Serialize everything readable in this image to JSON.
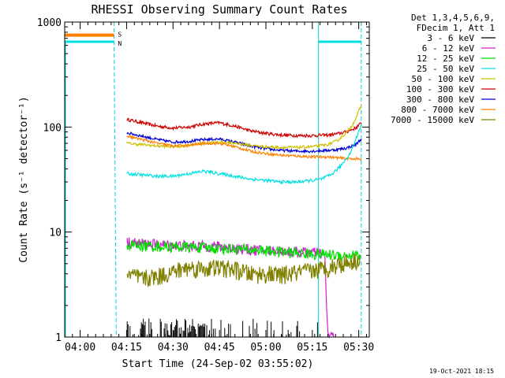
{
  "chart_data": {
    "type": "line",
    "title": "RHESSI Observing Summary Count Rates",
    "xlabel": "Start Time (24-Sep-02 03:55:02)",
    "ylabel": "Count Rate (s⁻¹ detector⁻¹)",
    "x_unit": "minutes after 03:55:02 (start)",
    "xlim": [
      0,
      98.4
    ],
    "ylim": [
      1,
      1000
    ],
    "y_scale": "log",
    "x_ticks": [
      {
        "label": "04:00",
        "minute": 5
      },
      {
        "label": "04:15",
        "minute": 20
      },
      {
        "label": "04:30",
        "minute": 35
      },
      {
        "label": "04:45",
        "minute": 50
      },
      {
        "label": "05:00",
        "minute": 65
      },
      {
        "label": "05:15",
        "minute": 80
      },
      {
        "label": "05:30",
        "minute": 95
      }
    ],
    "y_ticks": [
      {
        "label": "1",
        "value": 1
      },
      {
        "label": "10",
        "value": 10
      },
      {
        "label": "100",
        "value": 100
      },
      {
        "label": "1000",
        "value": 1000
      }
    ],
    "legend": {
      "position": "right",
      "header": [
        "Det 1,3,4,5,6,9,",
        "FDecim 1, Att 1"
      ],
      "entries": [
        {
          "label": "3 - 6 keV",
          "color": "#000000"
        },
        {
          "label": "6 - 12 keV",
          "color": "#d020d0"
        },
        {
          "label": "12 - 25 keV",
          "color": "#00e000"
        },
        {
          "label": "25 - 50 keV",
          "color": "#00e0e0"
        },
        {
          "label": "50 - 100 keV",
          "color": "#d0c000"
        },
        {
          "label": "100 - 300 keV",
          "color": "#d00000"
        },
        {
          "label": "300 - 800 keV",
          "color": "#0000d0"
        },
        {
          "label": "800 - 7000 keV",
          "color": "#ff8000"
        },
        {
          "label": "7000 - 15000 keV",
          "color": "#808000"
        }
      ]
    },
    "markers": {
      "night_start": 15.9,
      "night_end": 95.8,
      "saa_line": 82,
      "saa_segment_left": [
        0,
        15.9
      ],
      "saa_segment_right": [
        82,
        95.8
      ],
      "orange_segment_value": 750,
      "cyan_segment_value": 650,
      "label_s": "S",
      "label_n": "N"
    },
    "series": [
      {
        "name": "100 - 300 keV",
        "color": "#d00000",
        "noise": 0.035,
        "x": [
          20.2,
          25,
          30,
          35,
          40,
          45,
          50,
          55,
          60,
          65,
          70,
          75,
          80,
          85,
          88,
          91,
          94,
          96
        ],
        "y": [
          118,
          110,
          102,
          98,
          100,
          107,
          110,
          102,
          92,
          87,
          84,
          83,
          83,
          84,
          86,
          90,
          98,
          110
        ]
      },
      {
        "name": "300 - 800 keV",
        "color": "#0000d0",
        "noise": 0.03,
        "x": [
          20.2,
          25,
          30,
          35,
          40,
          45,
          50,
          55,
          60,
          65,
          70,
          75,
          80,
          85,
          88,
          91,
          94,
          96
        ],
        "y": [
          88,
          82,
          76,
          72,
          73,
          76,
          77,
          72,
          66,
          62,
          60,
          59,
          59,
          60,
          61,
          63,
          68,
          78
        ]
      },
      {
        "name": "50 - 100 keV",
        "color": "#d0c000",
        "noise": 0.03,
        "x": [
          20.2,
          25,
          30,
          35,
          40,
          45,
          50,
          55,
          60,
          65,
          70,
          75,
          80,
          85,
          88,
          91,
          93,
          94.5,
          96
        ],
        "y": [
          70,
          68,
          66,
          65,
          67,
          70,
          72,
          70,
          67,
          65,
          64,
          64,
          65,
          68,
          74,
          88,
          105,
          130,
          165
        ]
      },
      {
        "name": "800 - 7000 keV",
        "color": "#ff8000",
        "noise": 0.03,
        "x": [
          20.2,
          25,
          30,
          35,
          40,
          45,
          50,
          55,
          60,
          65,
          70,
          75,
          80,
          85,
          88,
          91,
          94,
          96
        ],
        "y": [
          82,
          76,
          70,
          66,
          67,
          70,
          70,
          65,
          59,
          56,
          54,
          53,
          52,
          52,
          51,
          50,
          50,
          49
        ]
      },
      {
        "name": "25 - 50 keV",
        "color": "#00e0e0",
        "noise": 0.035,
        "x": [
          20.2,
          25,
          30,
          35,
          40,
          45,
          50,
          55,
          60,
          65,
          70,
          75,
          80,
          83,
          86,
          89,
          92,
          94,
          96
        ],
        "y": [
          36,
          35,
          34,
          34,
          36,
          38,
          36,
          34,
          32,
          31,
          30,
          30,
          31,
          32,
          35,
          42,
          55,
          75,
          110
        ]
      },
      {
        "name": "6 - 12 keV",
        "color": "#d020d0",
        "noise": 0.12,
        "x": [
          20.2,
          30,
          40,
          50,
          60,
          70,
          80,
          84,
          85,
          87
        ],
        "y": [
          8.0,
          7.6,
          7.4,
          7.3,
          6.8,
          6.6,
          6.4,
          6.2,
          1.05,
          1.0
        ]
      },
      {
        "name": "12 - 25 keV",
        "color": "#00e000",
        "noise": 0.12,
        "x": [
          20.2,
          30,
          40,
          50,
          60,
          70,
          80,
          90,
          95.5
        ],
        "y": [
          7.5,
          7.3,
          7.2,
          7.0,
          6.8,
          6.5,
          6.2,
          6.0,
          6.0
        ]
      },
      {
        "name": "7000 - 15000 keV",
        "color": "#808000",
        "noise": 0.2,
        "x": [
          20.2,
          25,
          30,
          35,
          40,
          45,
          50,
          55,
          60,
          65,
          70,
          75,
          80,
          85,
          90,
          95.5
        ],
        "y": [
          4.0,
          3.6,
          3.8,
          4.2,
          4.6,
          4.5,
          4.6,
          4.4,
          4.0,
          4.0,
          3.9,
          4.1,
          4.3,
          4.6,
          5.1,
          5.5
        ]
      },
      {
        "name": "3 - 6 keV",
        "color": "#000000",
        "style": "spikes",
        "x": [
          20.2,
          82
        ],
        "y_base": 1,
        "y_max": 1.5
      }
    ]
  },
  "footer": {
    "timestamp": "19-Oct-2021 18:15"
  }
}
